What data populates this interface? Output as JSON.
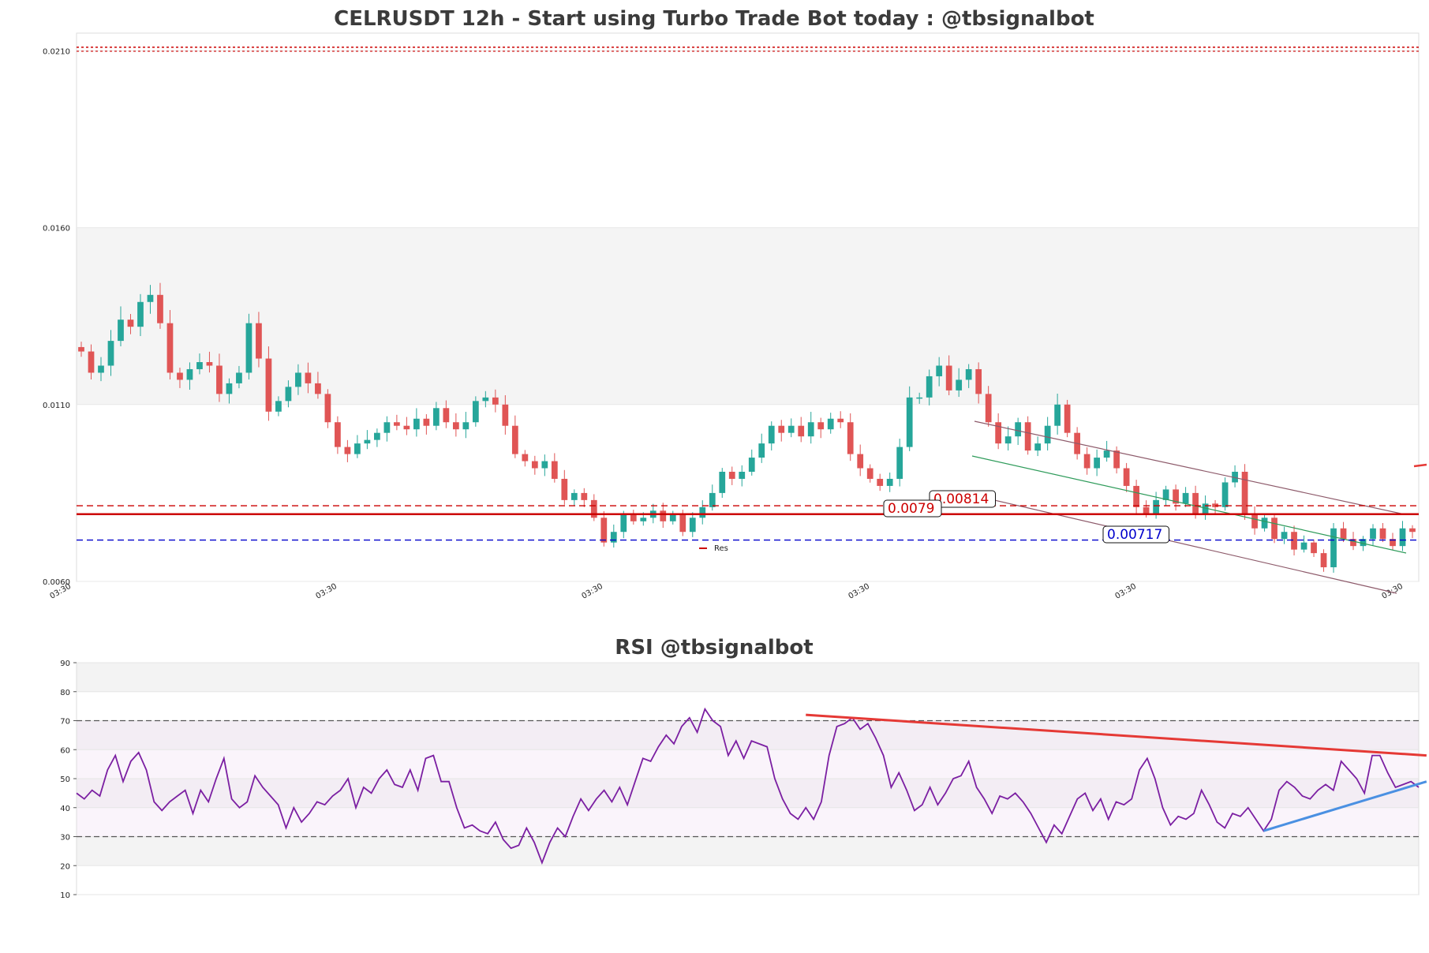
{
  "chart_data": [
    {
      "type": "candlestick",
      "title": "CELRUSDT 12h - Start using Turbo Trade Bot today : @tbsignalbot",
      "ylim": [
        0.006,
        0.0215
      ],
      "y_ticks": [
        "0.0060",
        "0.0110",
        "0.0160",
        "0.0210"
      ],
      "x_ticks": [
        "03:30",
        "03:30",
        "03:30",
        "03:30",
        "03:30",
        "03:30"
      ],
      "legend": {
        "label": "Res",
        "placement": "bottom-center"
      },
      "levels": [
        {
          "label": "0.00814",
          "value": 0.00814,
          "color": "#cc0000",
          "style": "dashed",
          "boxed": true
        },
        {
          "label": "0.0079",
          "value": 0.0079,
          "color": "#cc0000",
          "style": "solid",
          "boxed": true
        },
        {
          "label": "0.00717",
          "value": 0.00717,
          "color": "#0000cc",
          "style": "dashed",
          "boxed": true
        },
        {
          "label": "",
          "value": 0.0211,
          "color": "#cc0000",
          "style": "dotted",
          "boxed": false
        }
      ],
      "shaded_band": [
        0.011,
        0.016
      ],
      "candle_colors": {
        "up": "#26a69a",
        "down": "#e05555"
      },
      "close": [
        0.0125,
        0.0119,
        0.0121,
        0.0128,
        0.0134,
        0.0132,
        0.0139,
        0.0141,
        0.0133,
        0.0119,
        0.0117,
        0.012,
        0.0122,
        0.0121,
        0.0113,
        0.0116,
        0.0119,
        0.0133,
        0.0123,
        0.0108,
        0.0111,
        0.0115,
        0.0119,
        0.0116,
        0.0113,
        0.0105,
        0.0098,
        0.0096,
        0.0099,
        0.01,
        0.0102,
        0.0105,
        0.0104,
        0.0103,
        0.0106,
        0.0104,
        0.0109,
        0.0105,
        0.0103,
        0.0105,
        0.0111,
        0.0112,
        0.011,
        0.0104,
        0.0096,
        0.0094,
        0.0092,
        0.0094,
        0.0089,
        0.0083,
        0.0085,
        0.0083,
        0.0078,
        0.0071,
        0.0074,
        0.0079,
        0.0077,
        0.0078,
        0.008,
        0.0077,
        0.0079,
        0.0074,
        0.0078,
        0.0081,
        0.0085,
        0.0091,
        0.0089,
        0.0091,
        0.0095,
        0.0099,
        0.0104,
        0.0102,
        0.0104,
        0.0101,
        0.0105,
        0.0103,
        0.0106,
        0.0105,
        0.0096,
        0.0092,
        0.0089,
        0.0087,
        0.0089,
        0.0098,
        0.0112,
        0.0112,
        0.0118,
        0.0121,
        0.0114,
        0.0117,
        0.012,
        0.0113,
        0.0105,
        0.0099,
        0.0101,
        0.0105,
        0.0097,
        0.0099,
        0.0104,
        0.011,
        0.0102,
        0.0096,
        0.0092,
        0.0095,
        0.0097,
        0.0092,
        0.0087,
        0.0081,
        0.0079,
        0.0083,
        0.0086,
        0.0082,
        0.0085,
        0.0079,
        0.0082,
        0.0081,
        0.0088,
        0.0091,
        0.0079,
        0.0075,
        0.0078,
        0.0072,
        0.0074,
        0.0069,
        0.0071,
        0.0068,
        0.0064,
        0.0075,
        0.0072,
        0.007,
        0.0072,
        0.0075,
        0.0072,
        0.007,
        0.0075,
        0.0074
      ]
    },
    {
      "type": "line",
      "title": "RSI @tbsignalbot",
      "ylim": [
        10,
        90
      ],
      "y_ticks": [
        "90",
        "80",
        "70",
        "60",
        "50",
        "40",
        "30",
        "20",
        "10"
      ],
      "reference_lines": [
        70,
        30
      ],
      "series": [
        {
          "color": "#7b1fa2",
          "values": [
            45,
            43,
            46,
            44,
            53,
            58,
            49,
            56,
            59,
            53,
            42,
            39,
            42,
            44,
            46,
            38,
            46,
            42,
            50,
            57,
            43,
            40,
            42,
            51,
            47,
            44,
            41,
            33,
            40,
            35,
            38,
            42,
            41,
            44,
            46,
            50,
            40,
            47,
            45,
            50,
            53,
            48,
            47,
            53,
            46,
            57,
            58,
            49,
            49,
            40,
            33,
            34,
            32,
            31,
            35,
            29,
            26,
            27,
            33,
            28,
            21,
            28,
            33,
            30,
            37,
            43,
            39,
            43,
            46,
            42,
            47,
            41,
            49,
            57,
            56,
            61,
            65,
            62,
            68,
            71,
            66,
            74,
            70,
            68,
            58,
            63,
            57,
            63,
            62,
            61,
            50,
            43,
            38,
            36,
            40,
            36,
            42,
            58,
            68,
            69,
            71,
            67,
            69,
            64,
            58,
            47,
            52,
            46,
            39,
            41,
            47,
            41,
            45,
            50,
            51,
            56,
            47,
            43,
            38,
            44,
            43,
            45,
            42,
            38,
            33,
            28,
            34,
            31,
            37,
            43,
            45,
            39,
            43,
            36,
            42,
            41,
            43,
            53,
            57,
            50,
            40,
            34,
            37,
            36,
            38,
            46,
            41,
            35,
            33,
            38,
            37,
            40,
            36,
            32,
            36,
            46,
            49,
            47,
            44,
            43,
            46,
            48,
            46,
            56,
            53,
            50,
            45,
            58,
            58,
            52,
            47,
            48,
            49,
            47
          ]
        }
      ],
      "trendlines": [
        {
          "color": "#e53935",
          "from": [
            94,
            72
          ],
          "to": [
            174,
            58
          ]
        },
        {
          "color": "#4a90e2",
          "from": [
            153,
            32
          ],
          "to": [
            174,
            49
          ]
        }
      ]
    }
  ]
}
